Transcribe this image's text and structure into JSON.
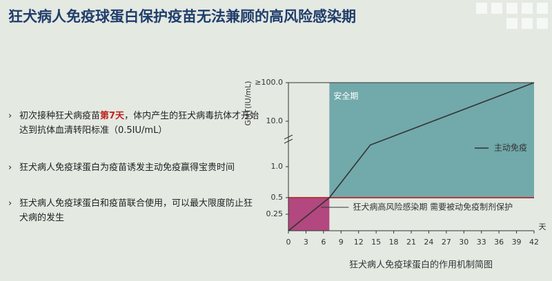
{
  "header": {
    "title": "狂犬病人免疫球蛋白保护疫苗无法兼顾的高风险感染期"
  },
  "bullets": [
    [
      "初次接种狂犬病疫苗",
      "第7天",
      "，体内产生的狂犬病毒抗体才开始达到抗体血清转阳标准（0.5IU/mL）"
    ],
    [
      "狂犬病人免疫球蛋白为疫苗诱发主动免疫赢得宝贵时间"
    ],
    [
      "狂犬病人免疫球蛋白和疫苗联合使用，可以最大限度防止狂犬病的发生"
    ]
  ],
  "chart_data": {
    "type": "line",
    "caption": "狂犬病人免疫球蛋白的作用机制简图",
    "y_label": "GMT(IU/mL)",
    "x_label": "天",
    "x": [
      0,
      7,
      14,
      42
    ],
    "series": [
      {
        "name": "主动免疫",
        "color": "#333333",
        "values": [
          0,
          0.5,
          3,
          100
        ]
      }
    ],
    "xlim": [
      0,
      42
    ],
    "xticks": [
      0,
      3,
      6,
      9,
      12,
      15,
      18,
      21,
      24,
      27,
      30,
      33,
      36,
      39,
      42
    ],
    "ylim": [
      0,
      100
    ],
    "yticks": [
      0.25,
      0.5,
      {
        "value": 1,
        "label": "1.0"
      },
      {
        "value": 10,
        "label": "10.0"
      },
      {
        "value": 100,
        "label": "≥100.0"
      }
    ],
    "regions": [
      {
        "label": "安全期",
        "x": [
          7,
          42
        ],
        "y": [
          0.5,
          100
        ],
        "color": "#72a9ab"
      },
      {
        "label": "狂犬病高风险感染期  需要被动免疫制剂保护",
        "x": [
          0,
          7
        ],
        "y": [
          0,
          0.5
        ],
        "color": "#b2487f"
      }
    ],
    "threshold": {
      "value": 0.5,
      "color": "#b23a3a"
    }
  }
}
